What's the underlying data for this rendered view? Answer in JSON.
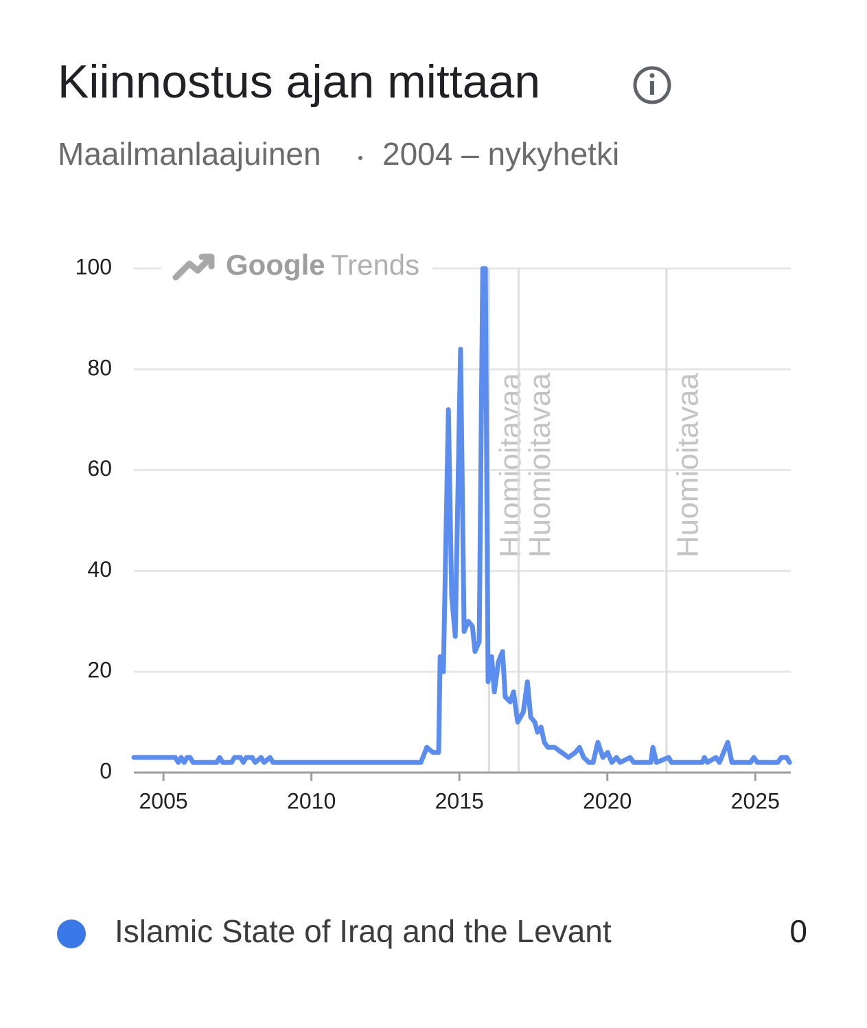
{
  "chart_data": {
    "type": "line",
    "title": "Kiinnostus ajan mittaan",
    "region": "Maailmanlaajuinen",
    "period": "2004 – nykyhetki",
    "watermark": [
      "Google",
      "Trends"
    ],
    "xlim": [
      2004,
      2026.2
    ],
    "xticks": [
      2005,
      2010,
      2015,
      2020,
      2025
    ],
    "ylim": [
      0,
      100
    ],
    "yticks": [
      0,
      20,
      40,
      60,
      80,
      100
    ],
    "grid": true,
    "annotations": [
      {
        "x": 2016.0,
        "label": "Huomioitavaa"
      },
      {
        "x": 2017.0,
        "label": "Huomioitavaa"
      },
      {
        "x": 2022.0,
        "label": "Huomioitavaa"
      }
    ],
    "series": [
      {
        "name": "Islamic State of Iraq and the Levant",
        "color": "#5b8def",
        "legend_color": "#3b78e7",
        "legend_value": 0,
        "x": [
          2004.0,
          2005.4,
          2005.5,
          2005.6,
          2005.7,
          2005.8,
          2005.9,
          2006.0,
          2006.8,
          2006.9,
          2007.0,
          2007.3,
          2007.4,
          2007.6,
          2007.7,
          2007.8,
          2008.0,
          2008.1,
          2008.3,
          2008.4,
          2008.6,
          2008.7,
          2013.7,
          2013.9,
          2014.1,
          2014.3,
          2014.35,
          2014.46,
          2014.63,
          2014.74,
          2014.86,
          2015.04,
          2015.16,
          2015.3,
          2015.44,
          2015.53,
          2015.67,
          2015.79,
          2015.88,
          2015.97,
          2016.09,
          2016.18,
          2016.32,
          2016.46,
          2016.55,
          2016.72,
          2016.83,
          2016.97,
          2017.16,
          2017.3,
          2017.41,
          2017.55,
          2017.64,
          2017.76,
          2017.87,
          2017.99,
          2018.22,
          2018.45,
          2018.69,
          2018.92,
          2019.06,
          2019.2,
          2019.38,
          2019.52,
          2019.68,
          2019.85,
          2020.01,
          2020.15,
          2020.31,
          2020.43,
          2020.77,
          2020.89,
          2021.47,
          2021.54,
          2021.66,
          2022.07,
          2022.17,
          2023.21,
          2023.28,
          2023.38,
          2023.67,
          2023.79,
          2024.07,
          2024.21,
          2024.84,
          2024.95,
          2025.07,
          2025.76,
          2025.88,
          2026.06,
          2026.16
        ],
        "values": [
          3,
          3,
          2,
          3,
          2,
          3,
          3,
          2,
          2,
          3,
          2,
          2,
          3,
          3,
          2,
          3,
          3,
          2,
          3,
          2,
          3,
          2,
          2,
          5,
          4,
          4,
          23,
          20,
          72,
          35,
          27,
          84,
          28,
          30,
          29,
          24,
          26,
          100,
          100,
          18,
          23,
          16,
          22,
          24,
          15,
          14,
          16,
          10,
          12,
          18,
          11,
          10,
          8,
          9,
          6,
          5,
          5,
          4,
          3,
          4,
          5,
          3,
          2,
          2,
          6,
          3,
          4,
          2,
          3,
          2,
          3,
          2,
          2,
          5,
          2,
          3,
          2,
          2,
          3,
          2,
          3,
          2,
          6,
          2,
          2,
          3,
          2,
          2,
          3,
          3,
          2
        ]
      }
    ]
  }
}
